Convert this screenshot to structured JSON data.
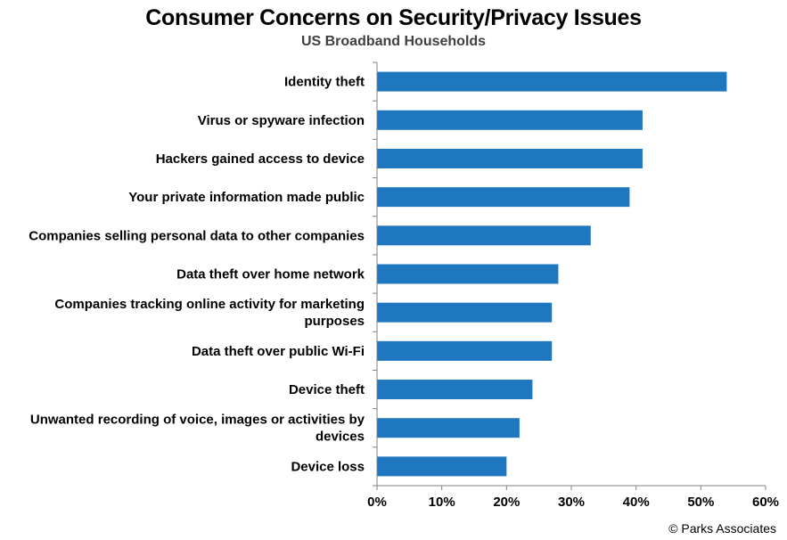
{
  "title": "Consumer Concerns on Security/Privacy Issues",
  "subtitle": "US Broadband Households",
  "source": "© Parks Associates",
  "colors": {
    "bar": "#1F77BF",
    "axis": "#808080"
  },
  "chart_data": {
    "type": "bar",
    "orientation": "horizontal",
    "title": "Consumer Concerns on Security/Privacy Issues",
    "subtitle": "US Broadband Households",
    "xlabel": "",
    "ylabel": "",
    "xlim": [
      0,
      60
    ],
    "x_ticks": [
      "0%",
      "10%",
      "20%",
      "30%",
      "40%",
      "50%",
      "60%"
    ],
    "grid": false,
    "legend": "none",
    "categories": [
      "Identity theft",
      "Virus or spyware infection",
      "Hackers gained access to device",
      "Your private information made public",
      "Companies selling personal data to other companies",
      "Data theft over home network",
      "Companies tracking online activity for marketing purposes",
      "Data theft over public Wi-Fi",
      "Device theft",
      "Unwanted recording of voice, images or activities by devices",
      "Device loss"
    ],
    "category_label_lines": [
      [
        "Identity theft"
      ],
      [
        "Virus or spyware infection"
      ],
      [
        "Hackers gained access to device"
      ],
      [
        "Your private information made public"
      ],
      [
        "Companies selling personal data to other companies"
      ],
      [
        "Data theft over home network"
      ],
      [
        "Companies tracking online activity for marketing",
        "purposes"
      ],
      [
        "Data theft over public Wi-Fi"
      ],
      [
        "Device theft"
      ],
      [
        "Unwanted recording of voice, images or activities by",
        "devices"
      ],
      [
        "Device loss"
      ]
    ],
    "values": [
      54,
      41,
      41,
      39,
      33,
      28,
      27,
      27,
      24,
      22,
      20
    ]
  }
}
